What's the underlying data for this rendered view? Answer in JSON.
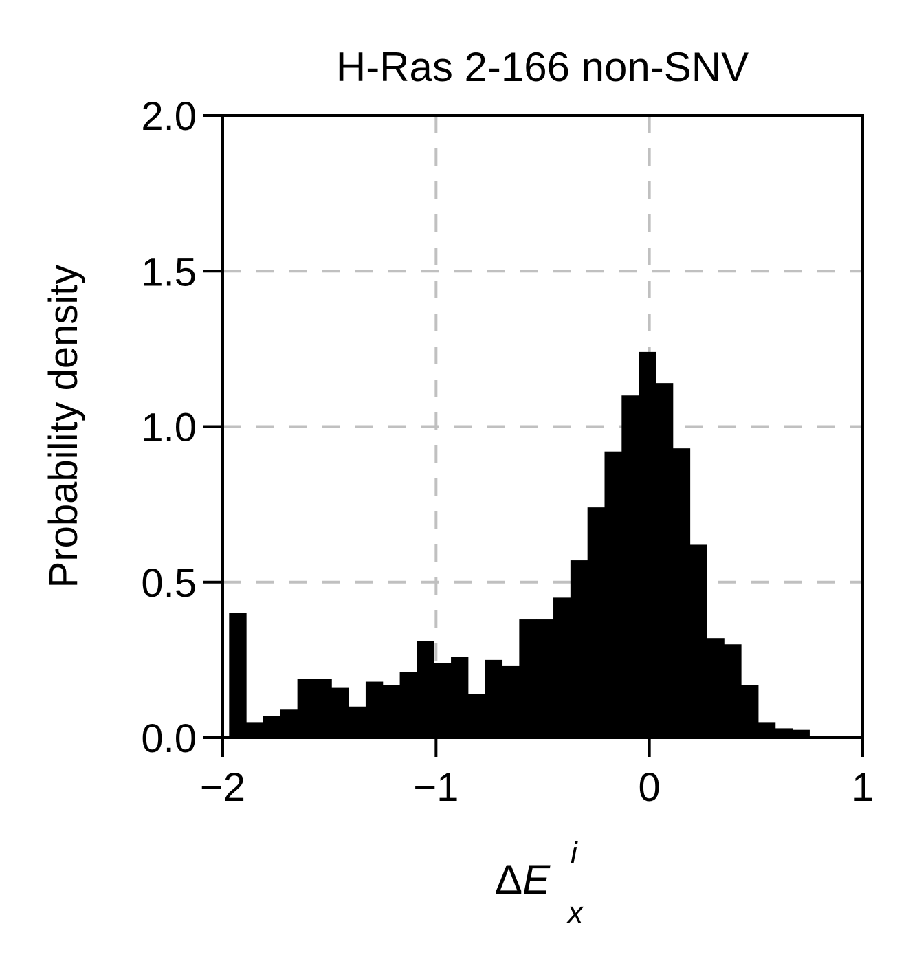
{
  "chart_data": {
    "type": "bar",
    "subtype": "histogram",
    "title": "H-Ras 2-166 non-SNV",
    "xlabel": "ΔE_x^i",
    "xlabel_parts": {
      "delta": "Δ",
      "base": "E",
      "sup": "i",
      "sub": "x"
    },
    "ylabel": "Probability density",
    "xlim": [
      -2,
      1
    ],
    "ylim": [
      0,
      2
    ],
    "xticks": [
      -2,
      -1,
      0,
      1
    ],
    "xtick_labels": [
      "−2",
      "−1",
      "0",
      "1"
    ],
    "yticks": [
      0.0,
      0.5,
      1.0,
      1.5,
      2.0
    ],
    "ytick_labels": [
      "0.0",
      "0.5",
      "1.0",
      "1.5",
      "2.0"
    ],
    "grid": true,
    "grid_style": "dashed",
    "bar_color": "#000000",
    "grid_color": "#c0c0c0",
    "bins": [
      {
        "x0": -1.97,
        "x1": -1.89,
        "value": 0.4
      },
      {
        "x0": -1.89,
        "x1": -1.81,
        "value": 0.05
      },
      {
        "x0": -1.81,
        "x1": -1.73,
        "value": 0.07
      },
      {
        "x0": -1.73,
        "x1": -1.65,
        "value": 0.09
      },
      {
        "x0": -1.65,
        "x1": -1.57,
        "value": 0.19
      },
      {
        "x0": -1.57,
        "x1": -1.49,
        "value": 0.19
      },
      {
        "x0": -1.49,
        "x1": -1.41,
        "value": 0.16
      },
      {
        "x0": -1.41,
        "x1": -1.33,
        "value": 0.1
      },
      {
        "x0": -1.33,
        "x1": -1.25,
        "value": 0.18
      },
      {
        "x0": -1.25,
        "x1": -1.17,
        "value": 0.17
      },
      {
        "x0": -1.17,
        "x1": -1.09,
        "value": 0.21
      },
      {
        "x0": -1.09,
        "x1": -1.01,
        "value": 0.31
      },
      {
        "x0": -1.01,
        "x1": -0.93,
        "value": 0.24
      },
      {
        "x0": -0.93,
        "x1": -0.85,
        "value": 0.26
      },
      {
        "x0": -0.85,
        "x1": -0.77,
        "value": 0.14
      },
      {
        "x0": -0.77,
        "x1": -0.69,
        "value": 0.25
      },
      {
        "x0": -0.69,
        "x1": -0.61,
        "value": 0.23
      },
      {
        "x0": -0.61,
        "x1": -0.53,
        "value": 0.38
      },
      {
        "x0": -0.53,
        "x1": -0.45,
        "value": 0.38
      },
      {
        "x0": -0.45,
        "x1": -0.37,
        "value": 0.45
      },
      {
        "x0": -0.37,
        "x1": -0.29,
        "value": 0.57
      },
      {
        "x0": -0.29,
        "x1": -0.21,
        "value": 0.74
      },
      {
        "x0": -0.21,
        "x1": -0.13,
        "value": 0.92
      },
      {
        "x0": -0.13,
        "x1": -0.05,
        "value": 1.1
      },
      {
        "x0": -0.05,
        "x1": 0.03,
        "value": 1.24
      },
      {
        "x0": 0.03,
        "x1": 0.11,
        "value": 1.14
      },
      {
        "x0": 0.11,
        "x1": 0.19,
        "value": 0.93
      },
      {
        "x0": 0.19,
        "x1": 0.27,
        "value": 0.62
      },
      {
        "x0": 0.27,
        "x1": 0.35,
        "value": 0.32
      },
      {
        "x0": 0.35,
        "x1": 0.43,
        "value": 0.3
      },
      {
        "x0": 0.43,
        "x1": 0.51,
        "value": 0.17
      },
      {
        "x0": 0.51,
        "x1": 0.59,
        "value": 0.05
      },
      {
        "x0": 0.59,
        "x1": 0.67,
        "value": 0.03
      },
      {
        "x0": 0.67,
        "x1": 0.75,
        "value": 0.025
      },
      {
        "x0": 0.75,
        "x1": 0.83,
        "value": 0.005
      },
      {
        "x0": 0.83,
        "x1": 0.91,
        "value": 0.005
      },
      {
        "x0": 0.91,
        "x1": 0.99,
        "value": 0.005
      }
    ]
  }
}
